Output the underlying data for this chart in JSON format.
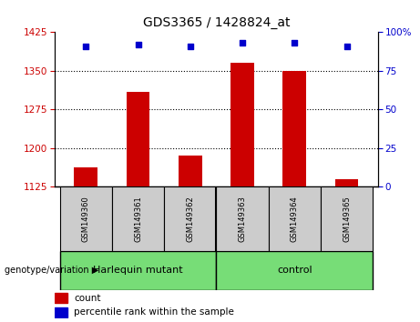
{
  "title": "GDS3365 / 1428824_at",
  "samples": [
    "GSM149360",
    "GSM149361",
    "GSM149362",
    "GSM149363",
    "GSM149364",
    "GSM149365"
  ],
  "count_values": [
    1163,
    1310,
    1185,
    1365,
    1350,
    1140
  ],
  "percentile_values": [
    91,
    92,
    91,
    93,
    93,
    91
  ],
  "ylim_left": [
    1125,
    1425
  ],
  "yticks_left": [
    1125,
    1200,
    1275,
    1350,
    1425
  ],
  "ylim_right": [
    0,
    100
  ],
  "yticks_right": [
    0,
    25,
    50,
    75,
    100
  ],
  "ytick_labels_right": [
    "0",
    "25",
    "50",
    "75",
    "100%"
  ],
  "bar_color": "#cc0000",
  "dot_color": "#0000cc",
  "bar_width": 0.45,
  "group_labels": [
    "Harlequin mutant",
    "control"
  ],
  "group_color": "#77dd77",
  "genotype_label": "genotype/variation",
  "legend_count_label": "count",
  "legend_percentile_label": "percentile rank within the sample",
  "tick_color_left": "#cc0000",
  "tick_color_right": "#0000cc",
  "background_sample": "#cccccc",
  "grid_lines": [
    1200,
    1275,
    1350
  ]
}
